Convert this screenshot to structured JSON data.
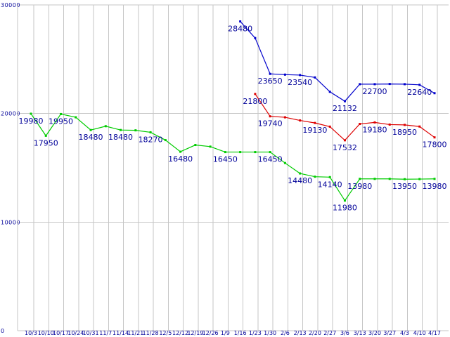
{
  "chart_data": {
    "type": "line",
    "title": "",
    "xlabel": "",
    "ylabel": "",
    "categories": [
      "10/3",
      "10/10",
      "10/17",
      "10/24",
      "10/31",
      "11/7",
      "11/14",
      "11/21",
      "11/28",
      "12/5",
      "12/12",
      "12/19",
      "12/26",
      "1/9",
      "1/16",
      "1/23",
      "1/30",
      "2/6",
      "2/13",
      "2/20",
      "2/27",
      "3/6",
      "3/13",
      "3/20",
      "3/27",
      "4/3",
      "4/10",
      "4/17"
    ],
    "ylim": [
      0,
      30000
    ],
    "yticks": [
      0,
      10000,
      20000,
      30000
    ],
    "ytick_labels": [
      "0",
      "10000",
      "20000",
      "30000"
    ],
    "grid": {
      "vertical": true,
      "horizontal": true,
      "color": "#c6c6c6"
    },
    "legend": "none",
    "background": "#ffffff",
    "axis_label_color": "#000099",
    "point_label_color": "#000099",
    "series": [
      {
        "name": "green",
        "color": "#00cc00",
        "values": [
          19980,
          17950,
          19950,
          19650,
          18480,
          18830,
          18480,
          18450,
          18270,
          17550,
          16480,
          17100,
          16950,
          16450,
          16450,
          16450,
          16450,
          15440,
          14480,
          14180,
          14140,
          11980,
          13980,
          13980,
          13980,
          13950,
          13960,
          13980
        ],
        "point_labels": [
          "19980",
          "17950",
          "19950",
          null,
          "18480",
          null,
          "18480",
          null,
          "18270",
          null,
          "16480",
          null,
          null,
          "16450",
          null,
          null,
          "16450",
          null,
          "14480",
          null,
          "14140",
          "11980",
          "13980",
          null,
          null,
          "13950",
          null,
          "13980"
        ]
      },
      {
        "name": "red",
        "color": "#dd0000",
        "values": [
          null,
          null,
          null,
          null,
          null,
          null,
          null,
          null,
          null,
          null,
          null,
          null,
          null,
          null,
          null,
          21800,
          19740,
          19650,
          19360,
          19130,
          18790,
          17532,
          19040,
          19180,
          18980,
          18950,
          18800,
          17800
        ],
        "point_labels": [
          null,
          null,
          null,
          null,
          null,
          null,
          null,
          null,
          null,
          null,
          null,
          null,
          null,
          null,
          null,
          "21800",
          "19740",
          null,
          null,
          "19130",
          null,
          "17532",
          null,
          "19180",
          null,
          "18950",
          null,
          "17800"
        ]
      },
      {
        "name": "blue",
        "color": "#0000cc",
        "values": [
          null,
          null,
          null,
          null,
          null,
          null,
          null,
          null,
          null,
          null,
          null,
          null,
          null,
          null,
          28480,
          26950,
          23650,
          23580,
          23540,
          23320,
          22000,
          21132,
          22700,
          22700,
          22720,
          22700,
          22640,
          21870
        ],
        "point_labels": [
          null,
          null,
          null,
          null,
          null,
          null,
          null,
          null,
          null,
          null,
          null,
          null,
          null,
          null,
          "28480",
          null,
          "23650",
          null,
          "23540",
          null,
          null,
          "21132",
          null,
          "22700",
          null,
          null,
          "22640",
          null
        ]
      }
    ]
  }
}
